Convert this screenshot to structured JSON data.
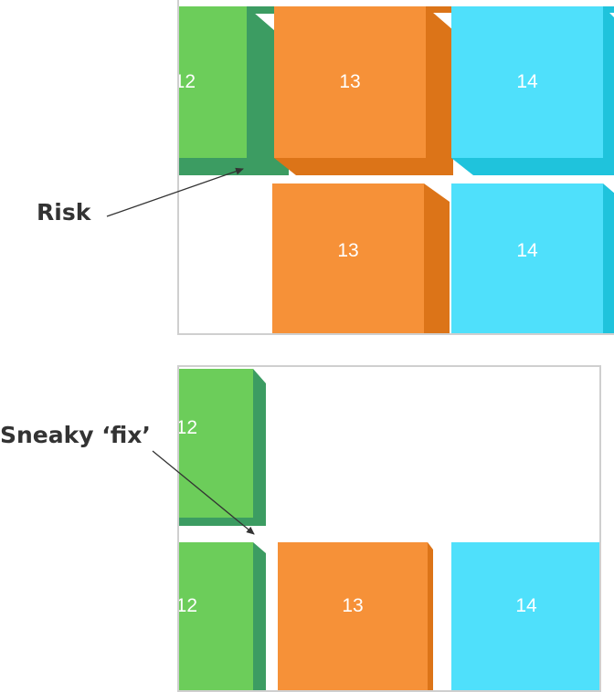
{
  "colors": {
    "green": "#6ccd5a",
    "green_side": "#3c9c62",
    "orange": "#f69138",
    "orange_side": "#dc7418",
    "cyan": "#4fe0fb",
    "cyan_side": "#1fc3dc",
    "arrow": "#333333",
    "panel_border": "#cfcfcf"
  },
  "top_panel": {
    "tiles": [
      "12",
      "13",
      "14",
      "13",
      "14"
    ]
  },
  "bottom_panel": {
    "tiles": [
      "12",
      "12",
      "13",
      "14"
    ]
  },
  "annotations": {
    "risk": "Risk",
    "sneaky_fix": "Sneaky ‘fix’"
  }
}
